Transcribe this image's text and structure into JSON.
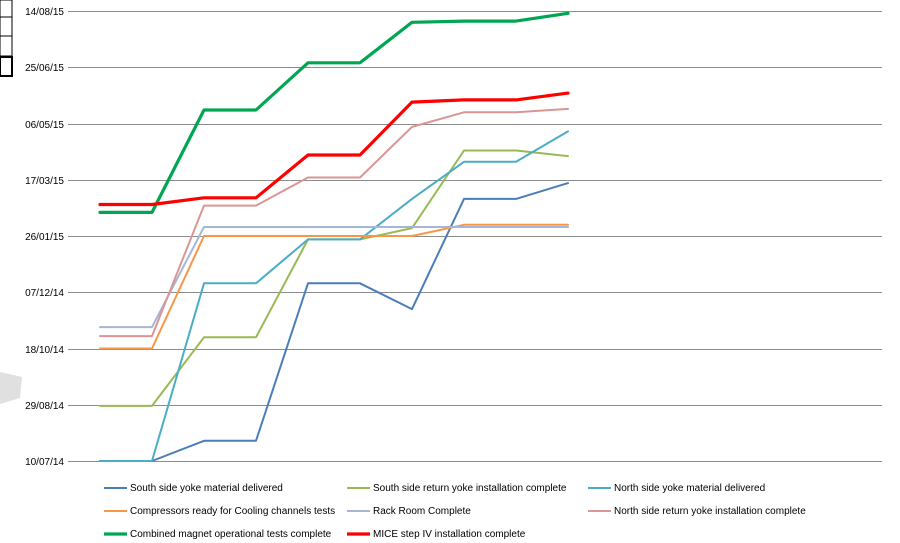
{
  "chart_data": {
    "type": "line",
    "title": "",
    "xlabel": "",
    "ylabel": "",
    "y_axis": {
      "type": "date",
      "ticks": [
        "10/07/14",
        "29/08/14",
        "18/10/14",
        "07/12/14",
        "26/01/15",
        "17/03/15",
        "06/05/15",
        "25/06/15",
        "14/08/15"
      ],
      "ylim": [
        "10/07/14",
        "14/08/15"
      ]
    },
    "grid": true,
    "legend_position": "bottom",
    "x": [
      1,
      2,
      3,
      4,
      5,
      6,
      7,
      8,
      9,
      10
    ],
    "series": [
      {
        "name": "South side yoke material delivered",
        "color": "#4a7ebb",
        "values": [
          "10/07/14",
          "10/07/14",
          "28/07/14",
          "28/07/14",
          "15/12/14",
          "15/12/14",
          "22/11/14",
          "28/02/15",
          "28/02/15",
          "14/03/15"
        ]
      },
      {
        "name": "South side return yoke installation complete",
        "color": "#98b954",
        "values": [
          "28/08/14",
          "28/08/14",
          "28/10/14",
          "28/10/14",
          "23/01/15",
          "23/01/15",
          "02/02/15",
          "12/04/15",
          "12/04/15",
          "07/04/15"
        ]
      },
      {
        "name": "North side yoke material delivered",
        "color": "#4bacc6",
        "values": [
          "10/07/14",
          "10/07/14",
          "15/12/14",
          "15/12/14",
          "23/01/15",
          "23/01/15",
          "28/02/15",
          "02/04/15",
          "02/04/15",
          "29/04/15"
        ]
      },
      {
        "name": "Compressors ready for Cooling channels tests",
        "color": "#f79646",
        "values": [
          "18/10/14",
          "18/10/14",
          "26/01/15",
          "26/01/15",
          "26/01/15",
          "26/01/15",
          "26/01/15",
          "05/02/15",
          "05/02/15",
          "05/02/15"
        ]
      },
      {
        "name": "Rack Room Complete",
        "color": "#a5b6d6",
        "values": [
          "06/11/14",
          "06/11/14",
          "03/02/15",
          "03/02/15",
          "03/02/15",
          "03/02/15",
          "03/02/15",
          "03/02/15",
          "03/02/15",
          "03/02/15"
        ]
      },
      {
        "name": "North side return yoke installation complete",
        "color": "#d99694",
        "values": [
          "29/10/14",
          "29/10/14",
          "22/02/15",
          "22/02/15",
          "19/03/15",
          "19/03/15",
          "03/05/15",
          "16/05/15",
          "16/05/15",
          "19/05/15"
        ]
      },
      {
        "name": "Combined magnet operational tests complete",
        "color": "#00a651",
        "values": [
          "16/02/15",
          "16/02/15",
          "18/05/15",
          "18/05/15",
          "29/06/15",
          "29/06/15",
          "04/08/15",
          "05/08/15",
          "05/08/15",
          "12/08/15"
        ]
      },
      {
        "name": "MICE step IV installation complete",
        "color": "#ff0000",
        "values": [
          "23/02/15",
          "23/02/15",
          "01/03/15",
          "01/03/15",
          "08/04/15",
          "08/04/15",
          "25/05/15",
          "27/05/15",
          "27/05/15",
          "02/06/15"
        ]
      }
    ]
  },
  "legend_rows": [
    [
      0,
      1,
      2
    ],
    [
      3,
      4,
      5
    ],
    [
      6,
      7
    ]
  ]
}
